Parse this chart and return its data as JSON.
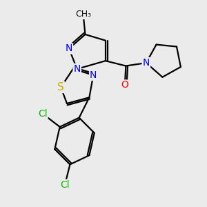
{
  "background_color": "#ebebeb",
  "atom_colors": {
    "N": "#0000ff",
    "S": "#ccaa00",
    "O": "#ff0000",
    "Cl": "#00bb00",
    "C": "#000000"
  },
  "bond_color": "#000000",
  "bond_width": 1.6,
  "font_size_atom": 10
}
